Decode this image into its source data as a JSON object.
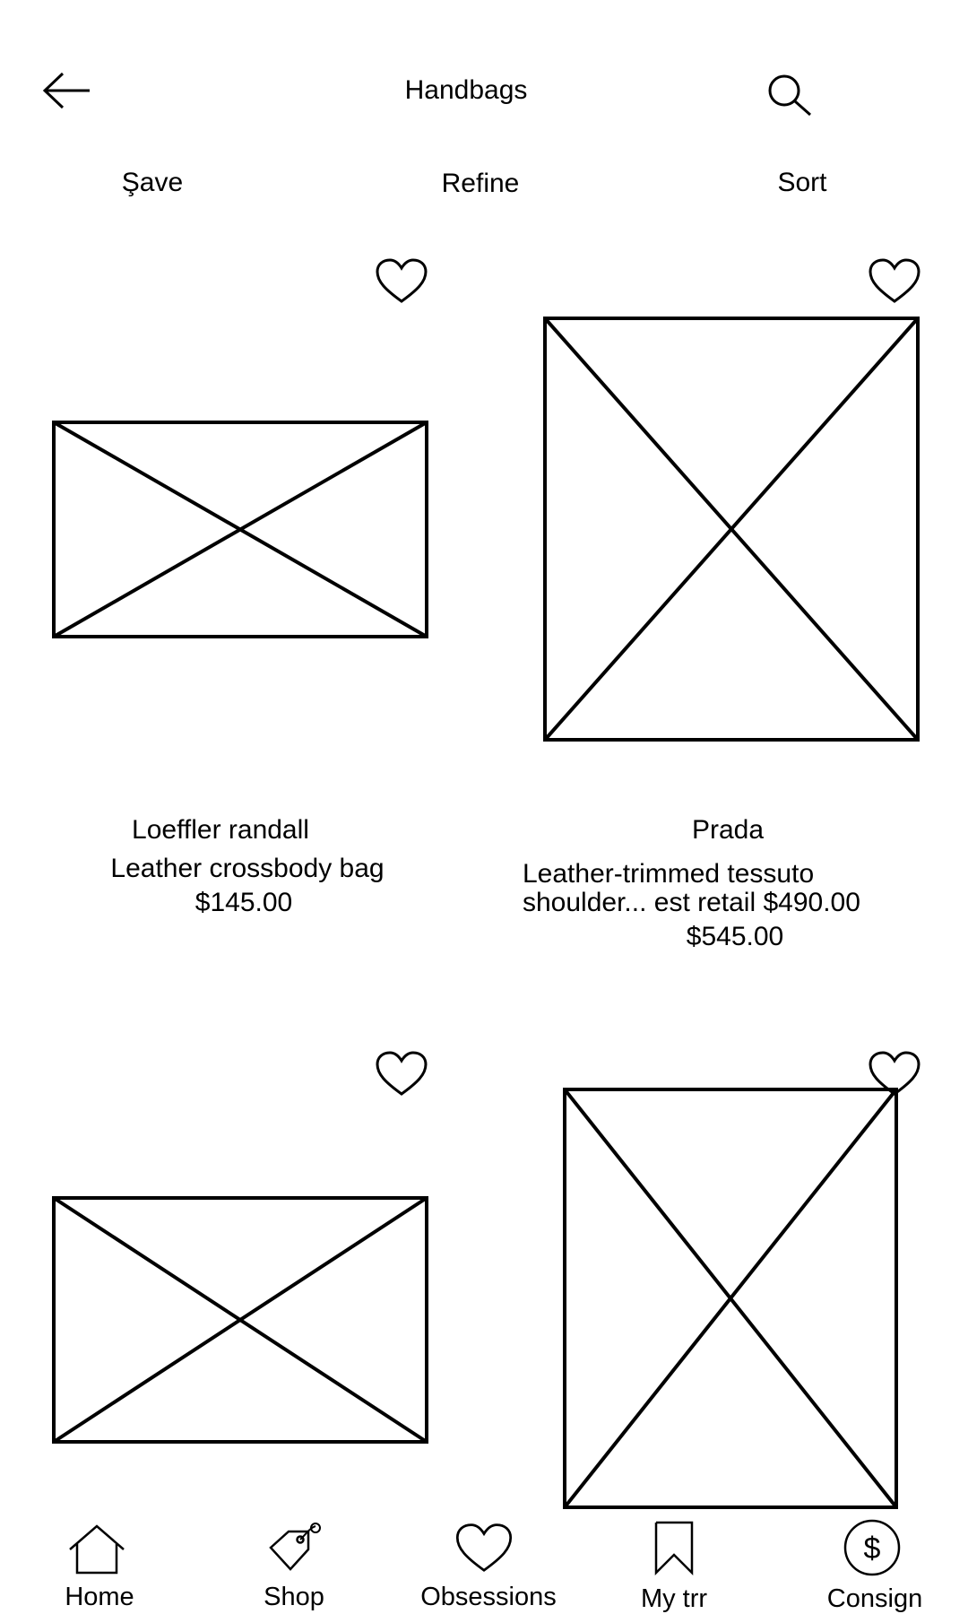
{
  "header": {
    "title": "Handbags",
    "back_icon": "arrow-left-icon",
    "search_icon": "search-icon"
  },
  "toolbar": {
    "save_label": "Şave",
    "refine_label": "Refine",
    "sort_label": "Sort"
  },
  "products": [
    {
      "brand": "Loeffler randall",
      "description": "Leather crossbody bag",
      "price": "$145.00",
      "favorite_icon": "heart-outline-icon"
    },
    {
      "brand": "Prada",
      "description_line1": "Leather-trimmed tessuto",
      "description_line2": "shoulder... est retail $490.00",
      "price": "$545.00",
      "favorite_icon": "heart-outline-icon"
    },
    {
      "favorite_icon": "heart-outline-icon"
    },
    {
      "favorite_icon": "heart-outline-icon"
    }
  ],
  "bottom_nav": {
    "items": [
      {
        "label": "Home",
        "icon": "home-icon"
      },
      {
        "label": "Shop",
        "icon": "tag-icon"
      },
      {
        "label": "Obsessions",
        "icon": "heart-icon"
      },
      {
        "label": "My trr",
        "icon": "bookmark-icon"
      },
      {
        "label": "Consign",
        "icon": "dollar-circle-icon"
      }
    ]
  }
}
